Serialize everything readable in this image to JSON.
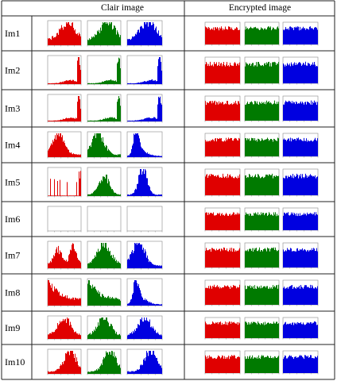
{
  "table": {
    "headers": [
      "Clair image",
      "Encrypted image"
    ],
    "rows": [
      {
        "label": "Im1"
      },
      {
        "label": "Im2"
      },
      {
        "label": "Im3"
      },
      {
        "label": "Im4"
      },
      {
        "label": "Im5"
      },
      {
        "label": "Im6"
      },
      {
        "label": "Im7"
      },
      {
        "label": "Im8"
      },
      {
        "label": "Im9"
      },
      {
        "label": "Im10"
      }
    ]
  },
  "channel_colors": [
    "#e00000",
    "#007a00",
    "#0000e0"
  ],
  "clair_profiles": [
    {
      "r": "hill",
      "g": "hill",
      "b": "hill"
    },
    {
      "r": "right-spike",
      "g": "right-spike",
      "b": "right-spike"
    },
    {
      "r": "right-spike",
      "g": "right-spike",
      "b": "right-spike"
    },
    {
      "r": "left-hill",
      "g": "left-hill",
      "b": "left-spike"
    },
    {
      "r": "sparse",
      "g": "mid-spike",
      "b": "center-spike"
    },
    {
      "r": "empty",
      "g": "empty",
      "b": "empty"
    },
    {
      "r": "bimodal",
      "g": "center-hill",
      "b": "left-hill"
    },
    {
      "r": "left-decay",
      "g": "left-decay",
      "b": "left-spike"
    },
    {
      "r": "center-hill",
      "g": "center-hill",
      "b": "center-hill"
    },
    {
      "r": "right-hill",
      "g": "right-hill",
      "b": "right-hill"
    }
  ],
  "encrypted_profile": "uniform"
}
